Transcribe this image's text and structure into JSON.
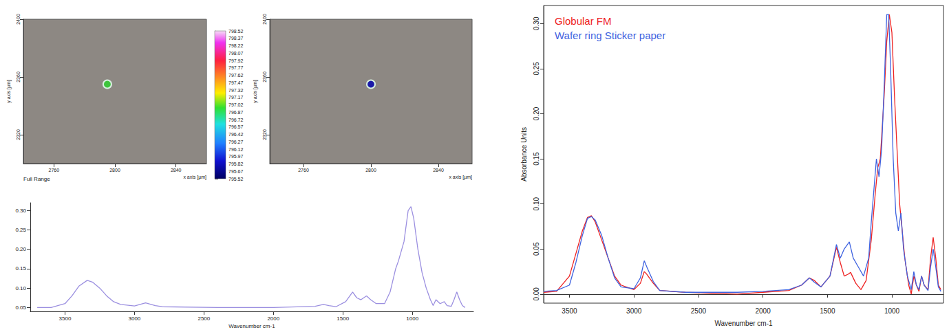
{
  "chart_data": [
    {
      "type": "image_map",
      "x_label": "x axis [µm]",
      "y_label": "y axis [µm]",
      "caption": "Full Range",
      "xlim": [
        2740,
        2860
      ],
      "xticks": [
        2760,
        2800,
        2840
      ],
      "ylim": [
        2300,
        2400
      ],
      "yticks": [
        2320,
        2360,
        2400
      ],
      "spot": {
        "x": 2795,
        "y": 2355,
        "color": "#3cc43c"
      },
      "colorbar": {
        "range": [
          795.52,
          798.52
        ],
        "ticks": [
          795.52,
          795.67,
          795.82,
          795.97,
          796.12,
          796.27,
          796.42,
          796.57,
          796.72,
          796.87,
          797.02,
          797.17,
          797.32,
          797.47,
          797.62,
          797.77,
          797.92,
          798.07,
          798.22,
          798.37,
          798.52
        ]
      },
      "grid": false
    },
    {
      "type": "image_map",
      "x_label": "x axis [µm]",
      "y_label": "y axis [µm]",
      "xlim": [
        2740,
        2860
      ],
      "xticks": [
        2760,
        2800,
        2840
      ],
      "ylim": [
        2300,
        2400
      ],
      "yticks": [
        2320,
        2360,
        2400
      ],
      "spot": {
        "x": 2800,
        "y": 2355,
        "color": "#1a1aa8"
      },
      "grid": false
    },
    {
      "type": "line",
      "x_label": "Wavenumber cm-1",
      "xlim": [
        560,
        3750
      ],
      "xticks": [
        3500,
        3000,
        2500,
        2000,
        1500,
        1000
      ],
      "ylim": [
        0.04,
        0.32
      ],
      "yticks": [
        0.05,
        {
          "value": 0.1,
          "label": "0.10"
        },
        0.15,
        {
          "value": 0.2,
          "label": "0.20"
        },
        0.25,
        {
          "value": 0.3,
          "label": "0.30"
        }
      ],
      "grid": false,
      "series": [
        {
          "color": "#9b8fe0",
          "x": [
            3700,
            3600,
            3500,
            3450,
            3400,
            3340,
            3300,
            3250,
            3200,
            3150,
            3100,
            3000,
            2920,
            2850,
            2800,
            2400,
            2000,
            1700,
            1640,
            1600,
            1550,
            1480,
            1430,
            1400,
            1370,
            1330,
            1300,
            1260,
            1200,
            1160,
            1120,
            1100,
            1060,
            1030,
            1010,
            990,
            960,
            930,
            900,
            870,
            850,
            830,
            800,
            770,
            750,
            720,
            700,
            680,
            660,
            640,
            620
          ],
          "values": [
            0.05,
            0.05,
            0.06,
            0.08,
            0.105,
            0.12,
            0.115,
            0.1,
            0.08,
            0.065,
            0.058,
            0.054,
            0.062,
            0.055,
            0.052,
            0.05,
            0.05,
            0.053,
            0.058,
            0.055,
            0.052,
            0.065,
            0.09,
            0.075,
            0.07,
            0.08,
            0.07,
            0.06,
            0.06,
            0.09,
            0.15,
            0.17,
            0.22,
            0.3,
            0.31,
            0.28,
            0.2,
            0.14,
            0.1,
            0.07,
            0.055,
            0.07,
            0.06,
            0.065,
            0.055,
            0.053,
            0.07,
            0.09,
            0.07,
            0.055,
            0.05
          ]
        }
      ]
    },
    {
      "type": "line",
      "x_label": "Wavenumber cm-1",
      "y_label": "Absorbance Units",
      "xlim": [
        600,
        3700
      ],
      "xticks": [
        3500,
        3000,
        2500,
        2000,
        1500,
        1000
      ],
      "ylim": [
        -0.01,
        0.32
      ],
      "yticks": [
        {
          "value": 0,
          "label": "0.00"
        },
        0.05,
        {
          "value": 0.1,
          "label": "0.10"
        },
        0.15,
        {
          "value": 0.2,
          "label": "0.20"
        },
        0.25,
        {
          "value": 0.3,
          "label": "0.30"
        }
      ],
      "grid": false,
      "legend": "top-left",
      "series": [
        {
          "name": "Globular FM",
          "color": "#ee2222",
          "x": [
            3700,
            3600,
            3500,
            3450,
            3400,
            3360,
            3330,
            3300,
            3250,
            3200,
            3150,
            3100,
            3000,
            2950,
            2920,
            2900,
            2850,
            2800,
            2600,
            2400,
            2200,
            2000,
            1800,
            1700,
            1640,
            1600,
            1550,
            1480,
            1430,
            1400,
            1370,
            1340,
            1320,
            1280,
            1240,
            1200,
            1160,
            1130,
            1110,
            1090,
            1060,
            1040,
            1020,
            1000,
            980,
            960,
            940,
            920,
            900,
            870,
            850,
            830,
            810,
            790,
            770,
            750,
            720,
            700,
            680,
            660,
            640,
            620
          ],
          "values": [
            0.002,
            0.003,
            0.02,
            0.045,
            0.07,
            0.085,
            0.087,
            0.08,
            0.06,
            0.04,
            0.02,
            0.01,
            0.005,
            0.012,
            0.025,
            0.022,
            0.012,
            0.004,
            0.002,
            0.001,
            0.0,
            0.002,
            0.004,
            0.01,
            0.018,
            0.015,
            0.008,
            0.02,
            0.052,
            0.035,
            0.02,
            0.022,
            0.024,
            0.012,
            0.005,
            0.015,
            0.06,
            0.11,
            0.14,
            0.15,
            0.22,
            0.28,
            0.31,
            0.29,
            0.22,
            0.16,
            0.1,
            0.07,
            0.04,
            0.01,
            0.0,
            0.02,
            0.01,
            0.003,
            0.02,
            0.01,
            0.005,
            0.04,
            0.063,
            0.04,
            0.01,
            0.005
          ]
        },
        {
          "name": "Wafer ring Sticker paper",
          "color": "#3f63e0",
          "x": [
            3700,
            3600,
            3500,
            3450,
            3400,
            3360,
            3330,
            3300,
            3250,
            3200,
            3150,
            3100,
            3000,
            2950,
            2920,
            2900,
            2850,
            2800,
            2600,
            2200,
            2000,
            1800,
            1700,
            1640,
            1600,
            1550,
            1480,
            1430,
            1400,
            1370,
            1330,
            1300,
            1260,
            1220,
            1180,
            1160,
            1120,
            1100,
            1080,
            1060,
            1040,
            1025,
            1010,
            990,
            970,
            950,
            930,
            910,
            880,
            850,
            830,
            810,
            790,
            770,
            750,
            720,
            700,
            680,
            660,
            640,
            620
          ],
          "values": [
            0.003,
            0.004,
            0.01,
            0.035,
            0.065,
            0.084,
            0.086,
            0.082,
            0.065,
            0.04,
            0.018,
            0.008,
            0.006,
            0.018,
            0.037,
            0.03,
            0.014,
            0.004,
            0.002,
            0.002,
            0.003,
            0.005,
            0.01,
            0.018,
            0.013,
            0.008,
            0.02,
            0.055,
            0.04,
            0.05,
            0.058,
            0.04,
            0.03,
            0.02,
            0.04,
            0.08,
            0.15,
            0.13,
            0.16,
            0.23,
            0.31,
            0.31,
            0.25,
            0.15,
            0.09,
            0.07,
            0.09,
            0.05,
            0.02,
            0.005,
            0.025,
            0.01,
            0.005,
            0.02,
            0.01,
            0.004,
            0.03,
            0.05,
            0.03,
            0.008,
            0.003
          ]
        }
      ]
    }
  ]
}
